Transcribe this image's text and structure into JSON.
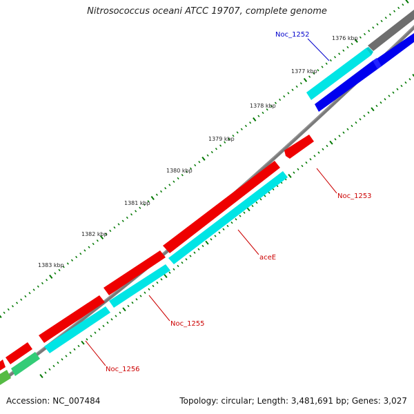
{
  "title": "Nitrosococcus oceani ATCC 19707, complete genome",
  "footer": {
    "accession": "Accession: NC_007484",
    "summary": "Topology: circular; Length: 3,481,691 bp; Genes: 3,027"
  },
  "scale_labels": [
    "1376 kbp",
    "1377 kbp",
    "1378 kbp",
    "1379 kbp",
    "1380 kbp",
    "1381 kbp",
    "1382 kbp",
    "1383 kbp"
  ],
  "gene_labels": [
    {
      "name": "Noc_1252",
      "color": "#0000cc"
    },
    {
      "name": "Noc_1253",
      "color": "#cc0000"
    },
    {
      "name": "aceE",
      "color": "#cc0000"
    },
    {
      "name": "Noc_1255",
      "color": "#cc0000"
    },
    {
      "name": "Noc_1256",
      "color": "#cc0000"
    }
  ],
  "colors": {
    "backbone": "#808080",
    "cds_forward": "#00ffff",
    "cds_reverse": "#ff0000",
    "cds_blue": "#0000ff",
    "cds_green": "#33cc66",
    "tick_green": "#007700"
  }
}
